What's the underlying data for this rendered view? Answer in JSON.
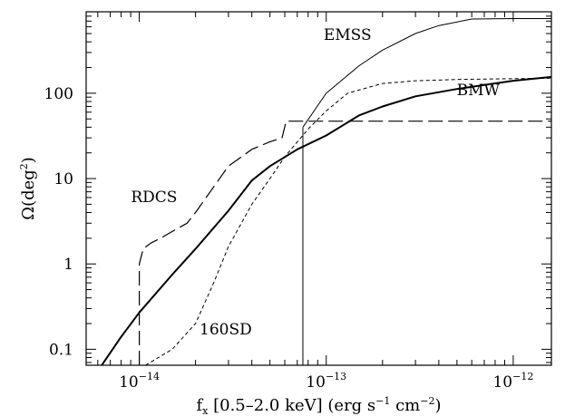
{
  "chart_data": {
    "type": "line",
    "title": "",
    "xlabel": "f",
    "xlabel_sub": "x",
    "xlabel_rest": " [0.5–2.0 keV] (erg s",
    "xlabel_exp1": "−1",
    "xlabel_mid": " cm",
    "xlabel_exp2": "−2",
    "xlabel_end": ")",
    "ylabel": "Ω(deg",
    "ylabel_exp": "2",
    "ylabel_end": ")",
    "xscale": "log",
    "yscale": "log",
    "xlim": [
      5.2e-15,
      1.6e-12
    ],
    "ylim": [
      0.065,
      900
    ],
    "xticks": [
      {
        "value": 1e-14,
        "base": "10",
        "exp": "−14"
      },
      {
        "value": 1e-13,
        "base": "10",
        "exp": "−13"
      },
      {
        "value": 1e-12,
        "base": "10",
        "exp": "−12"
      }
    ],
    "yticks": [
      {
        "value": 0.1,
        "label": "0.1"
      },
      {
        "value": 1,
        "label": "1"
      },
      {
        "value": 10,
        "label": "10"
      },
      {
        "value": 100,
        "label": "100"
      }
    ],
    "vline": {
      "x": 7.5e-14
    },
    "series": [
      {
        "name": "EMSS",
        "style": "thin",
        "x": [
          7.5e-14,
          1e-13,
          1.5e-13,
          2e-13,
          3e-13,
          4e-13,
          6e-13,
          1e-12,
          1.6e-12
        ],
        "y": [
          40,
          100,
          210,
          320,
          500,
          620,
          740,
          750,
          750
        ]
      },
      {
        "name": "BMW",
        "style": "thick",
        "x": [
          6.3e-15,
          8e-15,
          1e-14,
          1.5e-14,
          2e-14,
          3e-14,
          4e-14,
          5e-14,
          7e-14,
          1e-13,
          1.5e-13,
          2e-13,
          3e-13,
          5e-13,
          7e-13,
          1e-12,
          1.6e-12
        ],
        "y": [
          0.065,
          0.14,
          0.27,
          0.75,
          1.5,
          4.2,
          9.5,
          14,
          22,
          32,
          55,
          70,
          92,
          112,
          125,
          140,
          155
        ]
      },
      {
        "name": "160SD",
        "style": "short-dash",
        "x": [
          1.08e-14,
          1.5e-14,
          2e-14,
          2.5e-14,
          3e-14,
          4e-14,
          5e-14,
          6e-14,
          8e-14,
          1e-13,
          1.3e-13,
          2e-13,
          3e-13,
          5e-13,
          1e-12,
          1.6e-12
        ],
        "y": [
          0.065,
          0.1,
          0.2,
          0.6,
          1.6,
          5,
          10,
          18,
          38,
          62,
          100,
          130,
          140,
          145,
          148,
          150
        ]
      },
      {
        "name": "RDCS",
        "style": "long-dash",
        "x": [
          1e-14,
          1e-14,
          1.05e-14,
          1.15e-14,
          1.3e-14,
          1.5e-14,
          1.8e-14,
          2e-14,
          2.5e-14,
          3e-14,
          4e-14,
          5e-14,
          5.8e-14,
          6.1e-14,
          1e-13,
          1.6e-12
        ],
        "y": [
          0.065,
          1.0,
          1.5,
          1.75,
          2.0,
          2.4,
          3.0,
          4.0,
          8.0,
          14,
          22,
          27,
          30,
          47,
          47,
          47
        ]
      }
    ],
    "labels": [
      {
        "series": "EMSS",
        "text": "EMSS",
        "x": 1.3e-13,
        "y": 420
      },
      {
        "series": "BMW",
        "text": "BMW",
        "x": 6.5e-13,
        "y": 95
      },
      {
        "series": "RDCS",
        "text": "RDCS",
        "x": 1.2e-14,
        "y": 5.3
      },
      {
        "series": "160SD",
        "text": "160SD",
        "x": 2.9e-14,
        "y": 0.15
      }
    ]
  }
}
